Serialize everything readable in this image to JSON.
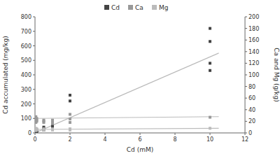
{
  "chart_data": {
    "type": "scatter",
    "xlabel": "Cd (mM)",
    "ylabel": "Cd accumulated (mg/kg)",
    "y2label": "Ca and Mg (g/kg)",
    "xlim": [
      0,
      12
    ],
    "ylim": [
      0,
      800
    ],
    "y2lim": [
      0,
      200
    ],
    "xticks": [
      0,
      2,
      4,
      6,
      8,
      10,
      12
    ],
    "yticks": [
      0,
      100,
      200,
      300,
      400,
      500,
      600,
      700,
      800
    ],
    "y2ticks": [
      0,
      20,
      40,
      60,
      80,
      100,
      120,
      140,
      160,
      180,
      200
    ],
    "grid": false,
    "legend": "top",
    "series": [
      {
        "name": "Cd",
        "type": "scatter",
        "marker": "square",
        "color": "#444444",
        "axis": "y",
        "x": [
          0.05,
          0.05,
          0.05,
          0.05,
          0.05,
          0.1,
          0.1,
          0.1,
          0.5,
          0.5,
          0.5,
          1.0,
          1.0,
          1.0,
          1.0,
          2.0,
          2.0,
          10.0,
          10.0,
          10.0,
          10.0
        ],
        "values": [
          3,
          6,
          10,
          14,
          18,
          8,
          14,
          20,
          20,
          30,
          40,
          35,
          50,
          60,
          70,
          220,
          260,
          430,
          480,
          630,
          720
        ]
      },
      {
        "name": "Ca",
        "type": "scatter",
        "marker": "square",
        "color": "#999999",
        "axis": "y2",
        "x": [
          0.05,
          0.05,
          0.05,
          0.05,
          0.05,
          0.1,
          0.1,
          0.1,
          0.5,
          0.5,
          0.5,
          1.0,
          1.0,
          1.0,
          1.0,
          2.0,
          2.0,
          2.0,
          10.0
        ],
        "values": [
          28,
          24,
          22,
          20,
          18,
          25,
          22,
          20,
          22,
          20,
          18,
          22,
          20,
          18,
          16,
          32,
          24,
          18,
          27
        ]
      },
      {
        "name": "Mg",
        "type": "scatter",
        "marker": "square",
        "color": "#bbbbbb",
        "axis": "y2",
        "x": [
          0.05,
          0.05,
          0.05,
          0.05,
          0.1,
          0.1,
          0.1,
          0.5,
          0.5,
          0.5,
          1.0,
          1.0,
          1.0,
          2.0,
          2.0,
          2.0,
          10.0
        ],
        "values": [
          8,
          6,
          5,
          4,
          7,
          6,
          5,
          7,
          6,
          5,
          7,
          6,
          5,
          7,
          6,
          5,
          8
        ]
      },
      {
        "type": "line",
        "line_style": "solid",
        "color": "#bbbbbb",
        "axis": "y",
        "x": [
          0,
          10.5
        ],
        "values": [
          0,
          550
        ]
      },
      {
        "type": "line",
        "line_style": "solid",
        "color": "#bbbbbb",
        "axis": "y2",
        "x": [
          0,
          10.5
        ],
        "values": [
          25,
          28
        ]
      },
      {
        "type": "line",
        "line_style": "solid",
        "color": "#bbbbbb",
        "axis": "y2",
        "x": [
          0,
          10.5
        ],
        "values": [
          6,
          8
        ]
      }
    ]
  }
}
